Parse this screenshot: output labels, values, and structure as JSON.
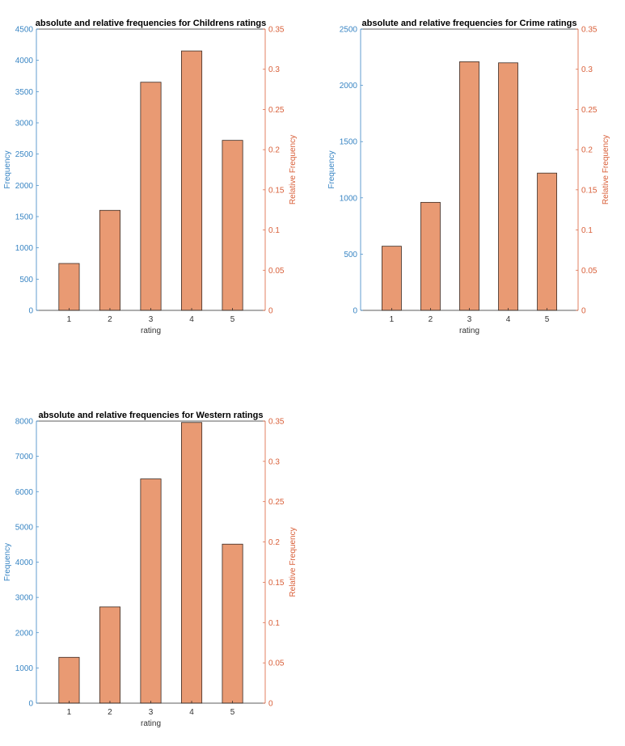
{
  "colors": {
    "left_axis": "#3a86c4",
    "right_axis": "#d9603a",
    "bar_fill": "#e99a73",
    "bar_edge": "#3b2a22",
    "frame": "#262626"
  },
  "chart_data": [
    {
      "type": "bar",
      "title": "absolute and relative frequencies for Childrens ratings",
      "xlabel": "rating",
      "ylabel": "Frequency",
      "y2label": "Relative Frequency",
      "categories": [
        "1",
        "2",
        "3",
        "4",
        "5"
      ],
      "values": [
        750,
        1600,
        3650,
        4150,
        2720
      ],
      "ylim": [
        0,
        4500
      ],
      "yticks": [
        "0",
        "500",
        "1000",
        "1500",
        "2000",
        "2500",
        "3000",
        "3500",
        "4000",
        "4500"
      ],
      "y2lim": [
        0,
        0.35
      ],
      "y2ticks": [
        "0",
        "0.05",
        "0.1",
        "0.15",
        "0.2",
        "0.25",
        "0.3",
        "0.35"
      ]
    },
    {
      "type": "bar",
      "title": "absolute and relative frequencies for Crime ratings",
      "xlabel": "rating",
      "ylabel": "Frequency",
      "y2label": "Relative Frequency",
      "categories": [
        "1",
        "2",
        "3",
        "4",
        "5"
      ],
      "values": [
        570,
        960,
        2210,
        2200,
        1220
      ],
      "ylim": [
        0,
        2500
      ],
      "yticks": [
        "0",
        "500",
        "1000",
        "1500",
        "2000",
        "2500"
      ],
      "y2lim": [
        0,
        0.35
      ],
      "y2ticks": [
        "0",
        "0.05",
        "0.1",
        "0.15",
        "0.2",
        "0.25",
        "0.3",
        "0.35"
      ]
    },
    {
      "type": "bar",
      "title": "absolute and relative frequencies for Western ratings",
      "xlabel": "rating",
      "ylabel": "Frequency",
      "y2label": "Relative Frequency",
      "categories": [
        "1",
        "2",
        "3",
        "4",
        "5"
      ],
      "values": [
        1300,
        2730,
        6360,
        7960,
        4510
      ],
      "ylim": [
        0,
        8000
      ],
      "yticks": [
        "0",
        "1000",
        "2000",
        "3000",
        "4000",
        "5000",
        "6000",
        "7000",
        "8000"
      ],
      "y2lim": [
        0,
        0.35
      ],
      "y2ticks": [
        "0",
        "0.05",
        "0.1",
        "0.15",
        "0.2",
        "0.25",
        "0.3",
        "0.35"
      ]
    }
  ]
}
